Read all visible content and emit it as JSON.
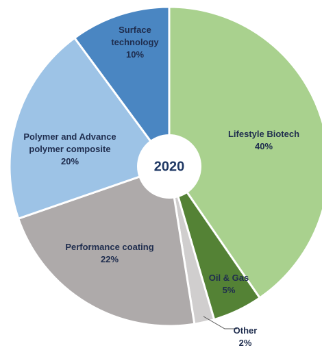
{
  "chart_data": {
    "type": "pie",
    "center_label": "2020",
    "categories": [
      "Lifestyle Biotech",
      "Oil & Gas",
      "Other",
      "Performance coating",
      "Polymer and Advance polymer composite",
      "Surface technology"
    ],
    "values": [
      40,
      5,
      2,
      22,
      20,
      10
    ],
    "value_labels": [
      "40%",
      "5%",
      "2%",
      "22%",
      "20%",
      "10%"
    ],
    "colors": [
      "#a9d18e",
      "#548235",
      "#d0cece",
      "#aeaaaa",
      "#9dc3e6",
      "#4a86c2"
    ]
  }
}
